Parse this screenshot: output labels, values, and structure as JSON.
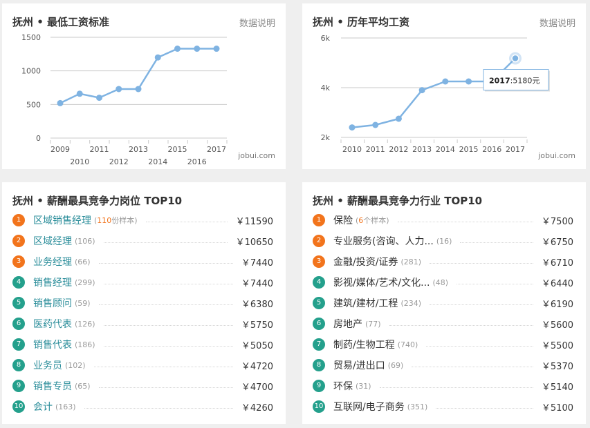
{
  "colors": {
    "accent": "#7fb3e2",
    "hot_rank": "#f2741c",
    "normal_rank": "#24a08c",
    "link": "#2a8d9a"
  },
  "min_wage_card": {
    "title": "抚州 • 最低工资标准",
    "link_label": "数据说明",
    "watermark": "jobui.com",
    "chart_data": {
      "type": "line",
      "x": [
        "2009",
        "2010",
        "2011",
        "2012",
        "2013",
        "2014",
        "2015",
        "2016",
        "2017"
      ],
      "values": [
        520,
        660,
        600,
        730,
        730,
        1200,
        1330,
        1330,
        1330
      ],
      "ylim": [
        0,
        1500
      ],
      "yticks": [
        "0",
        "500",
        "1000",
        "1500"
      ],
      "grid": true
    }
  },
  "avg_wage_card": {
    "title": "抚州 • 历年平均工资",
    "link_label": "数据说明",
    "watermark": "jobui.com",
    "tooltip": {
      "year": "2017",
      "value": "5180元"
    },
    "chart_data": {
      "type": "line",
      "x": [
        "2010",
        "2011",
        "2012",
        "2013",
        "2014",
        "2015",
        "2016",
        "2017"
      ],
      "values": [
        2400,
        2500,
        2750,
        3900,
        4250,
        4250,
        4250,
        5180
      ],
      "ylim": [
        2000,
        6000
      ],
      "yticks": [
        "2k",
        "4k",
        "6k"
      ],
      "grid": true
    }
  },
  "jobs_card": {
    "title": "抚州 • 薪酬最具竞争力岗位 TOP10",
    "items": [
      {
        "rank": "1",
        "name": "区域销售经理",
        "count_num": "110",
        "count_tail": "份样本)",
        "salary": "￥11590"
      },
      {
        "rank": "2",
        "name": "区域经理",
        "count": "(106)",
        "salary": "￥10650"
      },
      {
        "rank": "3",
        "name": "业务经理",
        "count": "(66)",
        "salary": "￥7440"
      },
      {
        "rank": "4",
        "name": "销售经理",
        "count": "(299)",
        "salary": "￥7440"
      },
      {
        "rank": "5",
        "name": "销售顾问",
        "count": "(59)",
        "salary": "￥6380"
      },
      {
        "rank": "6",
        "name": "医药代表",
        "count": "(126)",
        "salary": "￥5750"
      },
      {
        "rank": "7",
        "name": "销售代表",
        "count": "(186)",
        "salary": "￥5050"
      },
      {
        "rank": "8",
        "name": "业务员",
        "count": "(102)",
        "salary": "￥4720"
      },
      {
        "rank": "9",
        "name": "销售专员",
        "count": "(65)",
        "salary": "￥4700"
      },
      {
        "rank": "10",
        "name": "会计",
        "count": "(163)",
        "salary": "￥4260"
      }
    ]
  },
  "industry_card": {
    "title": "抚州 • 薪酬最具竞争力行业 TOP10",
    "items": [
      {
        "rank": "1",
        "name": "保险",
        "count_num": "6",
        "count_tail": "个样本)",
        "salary": "￥7500"
      },
      {
        "rank": "2",
        "name": "专业服务(咨询、人力...",
        "count": "(16)",
        "salary": "￥6750"
      },
      {
        "rank": "3",
        "name": "金融/投资/证券",
        "count": "(281)",
        "salary": "￥6710"
      },
      {
        "rank": "4",
        "name": "影视/媒体/艺术/文化...",
        "count": "(48)",
        "salary": "￥6440"
      },
      {
        "rank": "5",
        "name": "建筑/建材/工程",
        "count": "(234)",
        "salary": "￥6190"
      },
      {
        "rank": "6",
        "name": "房地产",
        "count": "(77)",
        "salary": "￥5600"
      },
      {
        "rank": "7",
        "name": "制药/生物工程",
        "count": "(740)",
        "salary": "￥5500"
      },
      {
        "rank": "8",
        "name": "贸易/进出口",
        "count": "(69)",
        "salary": "￥5370"
      },
      {
        "rank": "9",
        "name": "环保",
        "count": "(31)",
        "salary": "￥5140"
      },
      {
        "rank": "10",
        "name": "互联网/电子商务",
        "count": "(351)",
        "salary": "￥5100"
      }
    ]
  }
}
